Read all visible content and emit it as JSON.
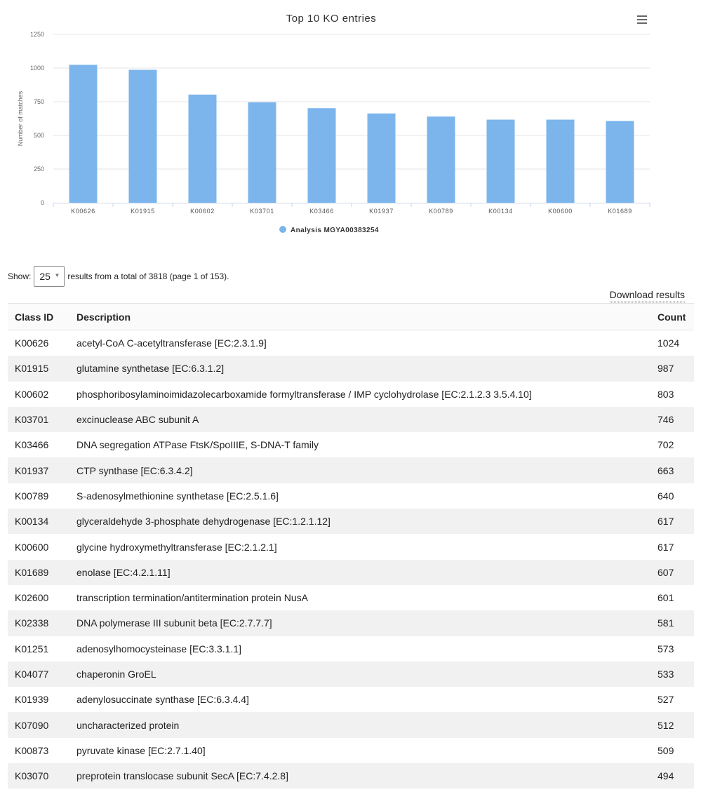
{
  "chart_data": {
    "type": "bar",
    "title": "Top 10 KO entries",
    "ylabel": "Number of matches",
    "xlabel": "",
    "ylim": [
      0,
      1250
    ],
    "yticks": [
      0,
      250,
      500,
      750,
      1000,
      1250
    ],
    "categories": [
      "K00626",
      "K01915",
      "K00602",
      "K03701",
      "K03466",
      "K01937",
      "K00789",
      "K00134",
      "K00600",
      "K01689"
    ],
    "series": [
      {
        "name": "Analysis MGYA00383254",
        "values": [
          1024,
          987,
          803,
          746,
          702,
          663,
          640,
          617,
          617,
          607
        ]
      }
    ],
    "bar_color": "#7cb5ec",
    "legend_position": "bottom-center",
    "grid": true
  },
  "chart_menu_icon": "hamburger-icon",
  "pager": {
    "show_label": "Show:",
    "page_size": "25",
    "summary": "results from a total of 3818 (page 1 of 153)."
  },
  "download_label": "Download results",
  "table": {
    "columns": [
      "Class ID",
      "Description",
      "Count"
    ],
    "rows": [
      [
        "K00626",
        "acetyl-CoA C-acetyltransferase [EC:2.3.1.9]",
        "1024"
      ],
      [
        "K01915",
        "glutamine synthetase [EC:6.3.1.2]",
        "987"
      ],
      [
        "K00602",
        "phosphoribosylaminoimidazolecarboxamide formyltransferase / IMP cyclohydrolase [EC:2.1.2.3 3.5.4.10]",
        "803"
      ],
      [
        "K03701",
        "excinuclease ABC subunit A",
        "746"
      ],
      [
        "K03466",
        "DNA segregation ATPase FtsK/SpoIIIE, S-DNA-T family",
        "702"
      ],
      [
        "K01937",
        "CTP synthase [EC:6.3.4.2]",
        "663"
      ],
      [
        "K00789",
        "S-adenosylmethionine synthetase [EC:2.5.1.6]",
        "640"
      ],
      [
        "K00134",
        "glyceraldehyde 3-phosphate dehydrogenase [EC:1.2.1.12]",
        "617"
      ],
      [
        "K00600",
        "glycine hydroxymethyltransferase [EC:2.1.2.1]",
        "617"
      ],
      [
        "K01689",
        "enolase [EC:4.2.1.11]",
        "607"
      ],
      [
        "K02600",
        "transcription termination/antitermination protein NusA",
        "601"
      ],
      [
        "K02338",
        "DNA polymerase III subunit beta [EC:2.7.7.7]",
        "581"
      ],
      [
        "K01251",
        "adenosylhomocysteinase [EC:3.3.1.1]",
        "573"
      ],
      [
        "K04077",
        "chaperonin GroEL",
        "533"
      ],
      [
        "K01939",
        "adenylosuccinate synthase [EC:6.3.4.4]",
        "527"
      ],
      [
        "K07090",
        "uncharacterized protein",
        "512"
      ],
      [
        "K00873",
        "pyruvate kinase [EC:2.7.1.40]",
        "509"
      ],
      [
        "K03070",
        "preprotein translocase subunit SecA [EC:7.4.2.8]",
        "494"
      ]
    ]
  }
}
